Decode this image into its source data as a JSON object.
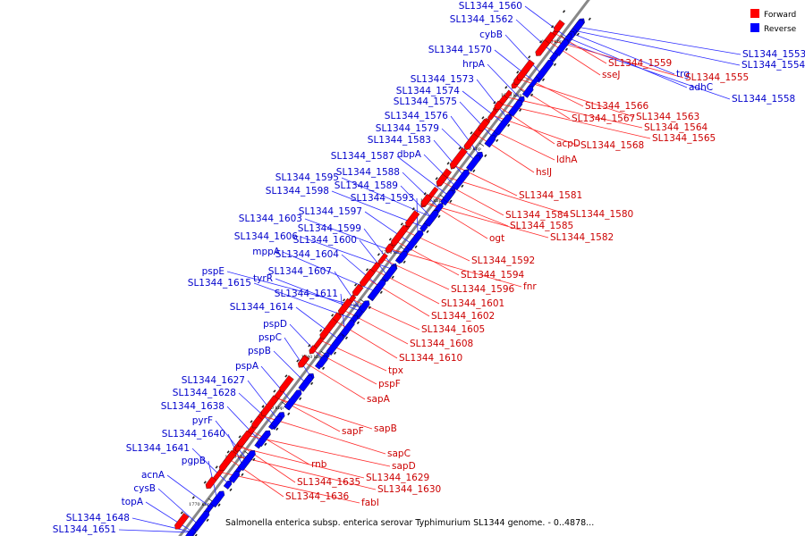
{
  "caption": "Salmonella enterica subsp. enterica serovar Typhimurium SL1344 genome. - 0..4878...",
  "legend": {
    "forward": {
      "label": "Forward",
      "color": "#ff0000"
    },
    "reverse": {
      "label": "Reverse",
      "color": "#0000ff"
    }
  },
  "colors": {
    "forward_text": "#cc0000",
    "reverse_text": "#0000cc",
    "forward_line": "#ff2a2a",
    "reverse_line": "#2a2aff",
    "backbone": "#888888"
  },
  "axis_ticks": [
    "1680 kbp",
    "1690 kbp",
    "1700 kbp",
    "1710 kbp",
    "1720 kbp",
    "1730 kbp",
    "1740 kbp",
    "1750 kbp",
    "1760 kbp",
    "1770 kbp"
  ],
  "reverse_labels": [
    "SL1344_1560",
    "SL1344_1562",
    "cybB",
    "SL1344_1570",
    "hrpA",
    "SL1344_1573",
    "SL1344_1574",
    "SL1344_1575",
    "SL1344_1576",
    "SL1344_1579",
    "SL1344_1583",
    "SL1344_1587",
    "dbpA",
    "SL1344_1588",
    "SL1344_1595",
    "SL1344_1589",
    "SL1344_1598",
    "SL1344_1593",
    "SL1344_1597",
    "SL1344_1603",
    "SL1344_1599",
    "SL1344_1606",
    "SL1344_1600",
    "mppA",
    "SL1344_1604",
    "pspE",
    "SL1344_1607",
    "tyrR",
    "SL1344_1615",
    "SL1344_1611",
    "SL1344_1614",
    "pspD",
    "pspC",
    "pspB",
    "pspA",
    "SL1344_1627",
    "SL1344_1628",
    "SL1344_1638",
    "pyrF",
    "SL1344_1640",
    "SL1344_1641",
    "pgpB",
    "acnA",
    "cysB",
    "topA",
    "SL1344_1648",
    "SL1344_1651",
    "SL1344_1553",
    "SL1344_1554",
    "trg",
    "adhC",
    "SL1344_1558"
  ],
  "forward_labels": [
    "SL1344_1559",
    "sseJ",
    "SL1344_1555",
    "SL1344_1566",
    "SL1344_1567",
    "SL1344_1563",
    "SL1344_1564",
    "SL1344_1565",
    "acpD",
    "SL1344_1568",
    "ldhA",
    "hslJ",
    "SL1344_1581",
    "SL1344_1584",
    "SL1344_1580",
    "SL1344_1585",
    "SL1344_1582",
    "ogt",
    "SL1344_1592",
    "SL1344_1594",
    "fnr",
    "SL1344_1596",
    "SL1344_1601",
    "SL1344_1602",
    "SL1344_1605",
    "SL1344_1608",
    "SL1344_1610",
    "tpx",
    "pspF",
    "sapA",
    "sapB",
    "sapF",
    "sapC",
    "sapD",
    "rnb",
    "SL1344_1635",
    "SL1344_1629",
    "SL1344_1630",
    "SL1344_1636",
    "fabI"
  ]
}
